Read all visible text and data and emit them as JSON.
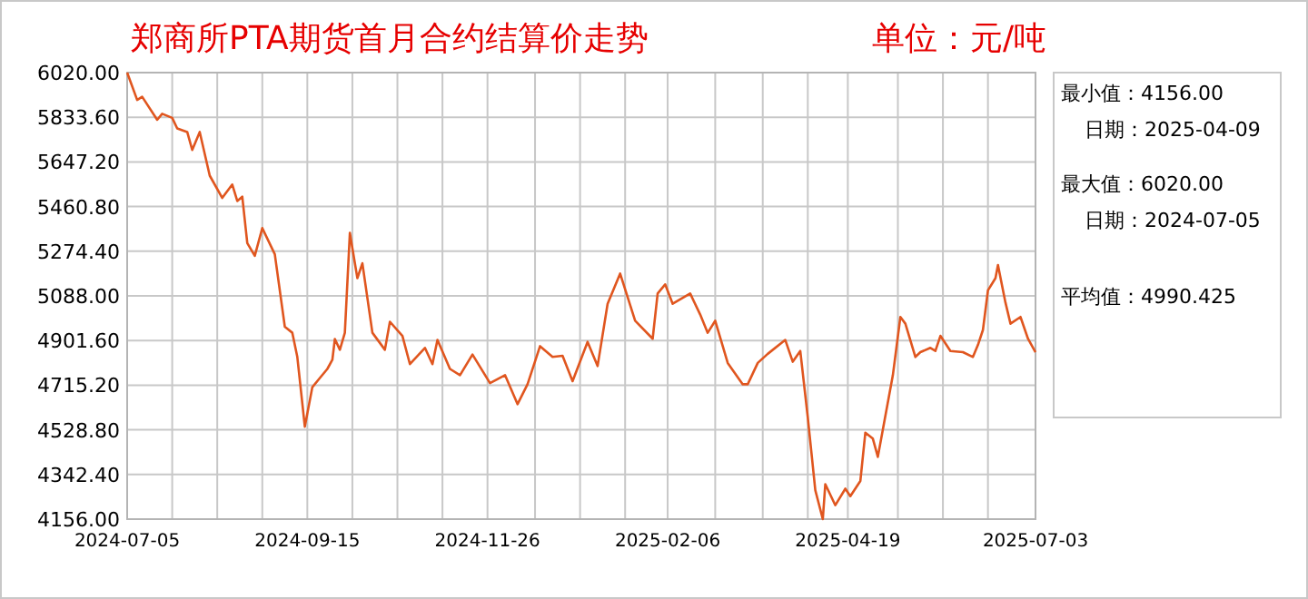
{
  "chart_data": {
    "type": "line",
    "title": "郑商所PTA期货首月合约结算价走势",
    "subtitle": "单位：元/吨",
    "annotations": [
      "最小值：4156.00",
      "日期：2025-04-09",
      "最大值：6020.00",
      "日期：2024-07-05",
      "平均值：4990.425"
    ],
    "x": [
      "2024-07-05",
      "2024-07-09",
      "2024-07-11",
      "2024-07-17",
      "2024-07-19",
      "2024-07-23",
      "2024-07-25",
      "2024-07-29",
      "2024-07-31",
      "2024-08-03",
      "2024-08-07",
      "2024-08-12",
      "2024-08-16",
      "2024-08-18",
      "2024-08-20",
      "2024-08-22",
      "2024-08-25",
      "2024-08-28",
      "2024-09-02",
      "2024-09-06",
      "2024-09-09",
      "2024-09-11",
      "2024-09-14",
      "2024-09-17",
      "2024-09-20",
      "2024-09-23",
      "2024-09-25",
      "2024-09-26",
      "2024-09-28",
      "2024-09-30",
      "2024-10-02",
      "2024-10-03",
      "2024-10-05",
      "2024-10-07",
      "2024-10-11",
      "2024-10-16",
      "2024-10-18",
      "2024-10-23",
      "2024-10-26",
      "2024-11-01",
      "2024-11-04",
      "2024-11-06",
      "2024-11-11",
      "2024-11-15",
      "2024-11-20",
      "2024-11-27",
      "2024-12-03",
      "2024-12-08",
      "2024-12-12",
      "2024-12-17",
      "2024-12-22",
      "2024-12-26",
      "2024-12-30",
      "2025-01-05",
      "2025-01-09",
      "2025-01-13",
      "2025-01-18",
      "2025-01-24",
      "2025-01-31",
      "2025-02-02",
      "2025-02-05",
      "2025-02-08",
      "2025-02-15",
      "2025-02-19",
      "2025-02-22",
      "2025-02-25",
      "2025-03-02",
      "2025-03-08",
      "2025-03-10",
      "2025-03-14",
      "2025-03-18",
      "2025-03-25",
      "2025-03-28",
      "2025-03-31",
      "2025-04-03",
      "2025-04-06",
      "2025-04-09",
      "2025-04-10",
      "2025-04-14",
      "2025-04-18",
      "2025-04-20",
      "2025-04-24",
      "2025-04-26",
      "2025-04-29",
      "2025-05-01",
      "2025-05-03",
      "2025-05-07",
      "2025-05-10",
      "2025-05-12",
      "2025-05-16",
      "2025-05-18",
      "2025-05-22",
      "2025-05-24",
      "2025-05-26",
      "2025-05-30",
      "2025-06-04",
      "2025-06-08",
      "2025-06-10",
      "2025-06-12",
      "2025-06-14",
      "2025-06-17",
      "2025-06-18",
      "2025-06-21",
      "2025-06-23",
      "2025-06-27",
      "2025-06-30",
      "2025-07-03"
    ],
    "series": [
      {
        "color": "#e0561f",
        "values": [
          6020,
          5906,
          5919,
          5823,
          5848,
          5831,
          5787,
          5772,
          5697,
          5772,
          5590,
          5497,
          5553,
          5484,
          5502,
          5308,
          5255,
          5371,
          5262,
          4959,
          4934,
          4833,
          4542,
          4707,
          4745,
          4783,
          4821,
          4908,
          4863,
          4934,
          5351,
          5287,
          5162,
          5224,
          4934,
          4863,
          4980,
          4921,
          4803,
          4871,
          4803,
          4904,
          4783,
          4757,
          4843,
          4724,
          4757,
          4636,
          4719,
          4878,
          4833,
          4838,
          4732,
          4896,
          4795,
          5055,
          5181,
          4984,
          4909,
          5098,
          5136,
          5055,
          5098,
          5010,
          4934,
          4984,
          4808,
          4719,
          4719,
          4808,
          4846,
          4904,
          4813,
          4858,
          4580,
          4277,
          4156,
          4302,
          4214,
          4283,
          4252,
          4315,
          4517,
          4492,
          4416,
          4530,
          4757,
          5000,
          4972,
          4833,
          4853,
          4871,
          4858,
          4921,
          4858,
          4853,
          4833,
          4883,
          4946,
          5111,
          5162,
          5217,
          5060,
          4972,
          5000,
          4909,
          4853
        ]
      }
    ],
    "xlim": [
      "2024-07-05",
      "2025-07-03"
    ],
    "xticks": [
      {
        "value": "2024-07-05",
        "label": "2024-07-05"
      },
      {
        "value": "2024-07-23",
        "label": null
      },
      {
        "value": "2024-08-10",
        "label": null
      },
      {
        "value": "2024-08-28",
        "label": null
      },
      {
        "value": "2024-09-15",
        "label": "2024-09-15"
      },
      {
        "value": "2024-10-03",
        "label": null
      },
      {
        "value": "2024-10-21",
        "label": null
      },
      {
        "value": "2024-11-08",
        "label": null
      },
      {
        "value": "2024-11-26",
        "label": "2024-11-26"
      },
      {
        "value": "2024-12-15",
        "label": null
      },
      {
        "value": "2025-01-02",
        "label": null
      },
      {
        "value": "2025-01-20",
        "label": null
      },
      {
        "value": "2025-02-06",
        "label": "2025-02-06"
      },
      {
        "value": "2025-02-25",
        "label": null
      },
      {
        "value": "2025-03-16",
        "label": null
      },
      {
        "value": "2025-04-03",
        "label": null
      },
      {
        "value": "2025-04-19",
        "label": "2025-04-19"
      },
      {
        "value": "2025-05-09",
        "label": null
      },
      {
        "value": "2025-05-27",
        "label": null
      },
      {
        "value": "2025-06-14",
        "label": null
      },
      {
        "value": "2025-07-03",
        "label": "2025-07-03"
      }
    ],
    "ylim": [
      4156,
      6020
    ],
    "yticks": [
      {
        "value": 4156,
        "label": "4156.00"
      },
      {
        "value": 4342.4,
        "label": "4342.40"
      },
      {
        "value": 4528.8,
        "label": "4528.80"
      },
      {
        "value": 4715.2,
        "label": "4715.20"
      },
      {
        "value": 4901.6,
        "label": "4901.60"
      },
      {
        "value": 5088,
        "label": "5088.00"
      },
      {
        "value": 5274.4,
        "label": "5274.40"
      },
      {
        "value": 5460.8,
        "label": "5460.80"
      },
      {
        "value": 5647.2,
        "label": "5647.20"
      },
      {
        "value": 5833.6,
        "label": "5833.60"
      },
      {
        "value": 6020,
        "label": "6020.00"
      }
    ],
    "grid": true,
    "line_style": "solid"
  }
}
